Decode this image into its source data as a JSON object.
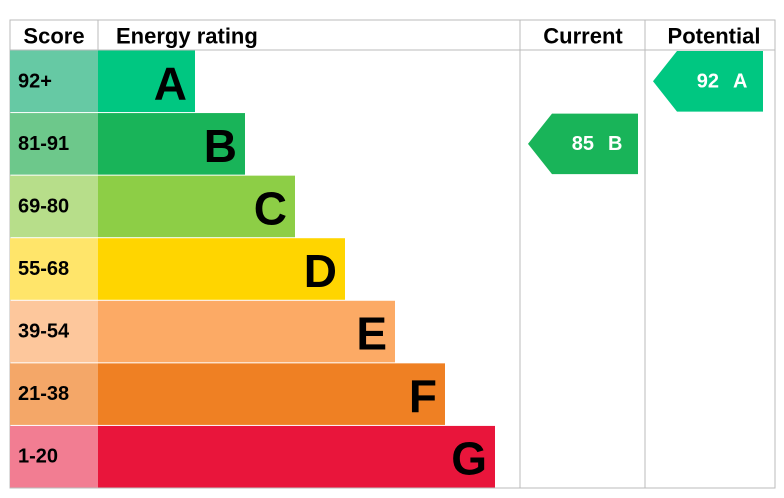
{
  "header": {
    "score": "Score",
    "rating": "Energy rating",
    "current": "Current",
    "potential": "Potential"
  },
  "bands": [
    {
      "score": "92+",
      "letter": "A"
    },
    {
      "score": "81-91",
      "letter": "B"
    },
    {
      "score": "69-80",
      "letter": "C"
    },
    {
      "score": "55-68",
      "letter": "D"
    },
    {
      "score": "39-54",
      "letter": "E"
    },
    {
      "score": "21-38",
      "letter": "F"
    },
    {
      "score": "1-20",
      "letter": "G"
    }
  ],
  "current": {
    "value": 85,
    "letter": "B"
  },
  "potential": {
    "value": 92,
    "letter": "A"
  }
}
